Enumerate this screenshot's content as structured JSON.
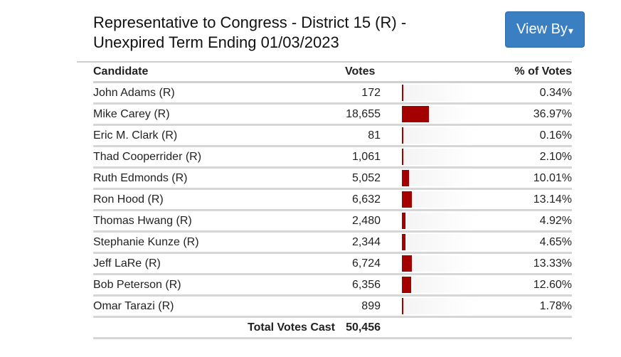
{
  "race": {
    "title_line1": "Representative to Congress - District 15 (R) -",
    "title_line2": "Unexpired Term Ending 01/03/2023"
  },
  "view_by_button": {
    "label": "View By",
    "caret": "▾"
  },
  "table": {
    "headers": {
      "candidate": "Candidate",
      "votes": "Votes",
      "pct": "% of Votes"
    },
    "rows": [
      {
        "name": "John Adams (R)",
        "votes": "172",
        "pct": "0.34%",
        "share": 0.34
      },
      {
        "name": "Mike Carey (R)",
        "votes": "18,655",
        "pct": "36.97%",
        "share": 36.97
      },
      {
        "name": "Eric M. Clark (R)",
        "votes": "81",
        "pct": "0.16%",
        "share": 0.16
      },
      {
        "name": "Thad Cooperrider (R)",
        "votes": "1,061",
        "pct": "2.10%",
        "share": 2.1
      },
      {
        "name": "Ruth Edmonds (R)",
        "votes": "5,052",
        "pct": "10.01%",
        "share": 10.01
      },
      {
        "name": "Ron Hood (R)",
        "votes": "6,632",
        "pct": "13.14%",
        "share": 13.14
      },
      {
        "name": "Thomas Hwang (R)",
        "votes": "2,480",
        "pct": "4.92%",
        "share": 4.92
      },
      {
        "name": "Stephanie Kunze (R)",
        "votes": "2,344",
        "pct": "4.65%",
        "share": 4.65
      },
      {
        "name": "Jeff LaRe (R)",
        "votes": "6,724",
        "pct": "13.33%",
        "share": 13.33
      },
      {
        "name": "Bob Peterson (R)",
        "votes": "6,356",
        "pct": "12.60%",
        "share": 12.6
      },
      {
        "name": "Omar Tarazi (R)",
        "votes": "899",
        "pct": "1.78%",
        "share": 1.78
      }
    ],
    "total": {
      "label": "Total Votes Cast",
      "value": "50,456"
    }
  },
  "colors": {
    "bar": "#a30000",
    "button": "#3a7fc1"
  }
}
